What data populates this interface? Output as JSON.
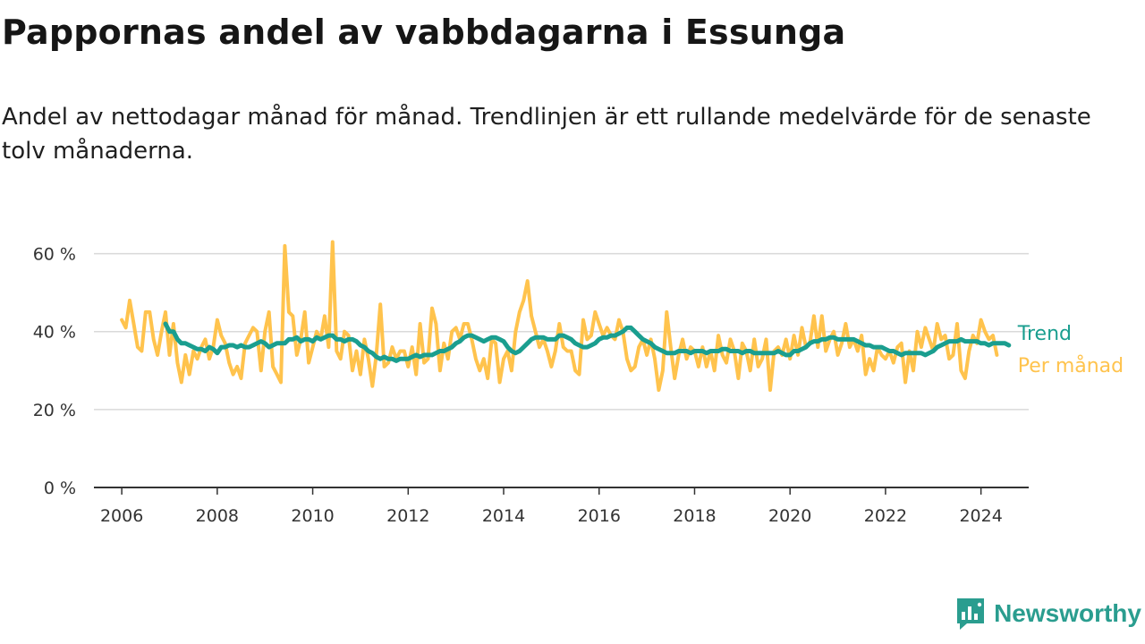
{
  "title": "Pappornas andel av vabbdagarna i Essunga",
  "subtitle": "Andel av nettodagar månad för månad. Trendlinjen är ett rullande medelvärde för de senaste tolv månaderna.",
  "brand": {
    "name": "Newsworthy",
    "icon": "newsworthy-logo-icon",
    "color": "#2a9d8f"
  },
  "colors": {
    "trend": "#1a9e8f",
    "monthly": "#ffc34d",
    "grid": "#d9d9d9",
    "axis": "#333333"
  },
  "chart_data": {
    "type": "line",
    "title": "Pappornas andel av vabbdagarna i Essunga",
    "ylabel": "",
    "xlabel": "",
    "ylim": [
      0,
      0.7
    ],
    "xlim": [
      "2005-06",
      "2025-01"
    ],
    "y_ticks": [
      {
        "value": 0,
        "label": "0 %"
      },
      {
        "value": 0.2,
        "label": "20 %"
      },
      {
        "value": 0.4,
        "label": "40 %"
      },
      {
        "value": 0.6,
        "label": "60 %"
      }
    ],
    "x_ticks": [
      {
        "value": "2006-01",
        "label": "2006"
      },
      {
        "value": "2008-01",
        "label": "2008"
      },
      {
        "value": "2010-01",
        "label": "2010"
      },
      {
        "value": "2012-01",
        "label": "2012"
      },
      {
        "value": "2014-01",
        "label": "2014"
      },
      {
        "value": "2016-01",
        "label": "2016"
      },
      {
        "value": "2018-01",
        "label": "2018"
      },
      {
        "value": "2020-01",
        "label": "2020"
      },
      {
        "value": "2022-01",
        "label": "2022"
      },
      {
        "value": "2024-01",
        "label": "2024"
      }
    ],
    "grid": true,
    "legend": "direct labels at right end of lines",
    "series": [
      {
        "name": "Per månad",
        "color": "#ffc34d",
        "start": "2006-01",
        "values": [
          0.43,
          0.41,
          0.48,
          0.42,
          0.36,
          0.35,
          0.45,
          0.45,
          0.38,
          0.34,
          0.4,
          0.45,
          0.34,
          0.42,
          0.32,
          0.27,
          0.34,
          0.29,
          0.35,
          0.33,
          0.36,
          0.38,
          0.33,
          0.36,
          0.43,
          0.39,
          0.37,
          0.32,
          0.29,
          0.31,
          0.28,
          0.37,
          0.39,
          0.41,
          0.4,
          0.3,
          0.4,
          0.45,
          0.31,
          0.29,
          0.27,
          0.62,
          0.45,
          0.44,
          0.34,
          0.38,
          0.45,
          0.32,
          0.36,
          0.4,
          0.38,
          0.44,
          0.36,
          0.63,
          0.35,
          0.33,
          0.4,
          0.39,
          0.3,
          0.35,
          0.29,
          0.38,
          0.33,
          0.26,
          0.34,
          0.47,
          0.31,
          0.32,
          0.36,
          0.33,
          0.35,
          0.35,
          0.31,
          0.36,
          0.29,
          0.42,
          0.32,
          0.33,
          0.46,
          0.42,
          0.3,
          0.37,
          0.33,
          0.4,
          0.41,
          0.38,
          0.42,
          0.42,
          0.38,
          0.33,
          0.3,
          0.33,
          0.28,
          0.38,
          0.37,
          0.27,
          0.33,
          0.35,
          0.3,
          0.4,
          0.45,
          0.48,
          0.53,
          0.44,
          0.4,
          0.36,
          0.38,
          0.35,
          0.31,
          0.35,
          0.42,
          0.36,
          0.35,
          0.35,
          0.3,
          0.29,
          0.43,
          0.38,
          0.39,
          0.45,
          0.42,
          0.39,
          0.41,
          0.39,
          0.38,
          0.43,
          0.4,
          0.33,
          0.3,
          0.31,
          0.36,
          0.38,
          0.34,
          0.38,
          0.33,
          0.25,
          0.3,
          0.45,
          0.36,
          0.28,
          0.34,
          0.38,
          0.33,
          0.36,
          0.35,
          0.31,
          0.36,
          0.31,
          0.35,
          0.3,
          0.39,
          0.34,
          0.32,
          0.38,
          0.35,
          0.28,
          0.37,
          0.35,
          0.3,
          0.38,
          0.31,
          0.33,
          0.38,
          0.25,
          0.35,
          0.36,
          0.34,
          0.38,
          0.33,
          0.39,
          0.34,
          0.41,
          0.36,
          0.37,
          0.44,
          0.36,
          0.44,
          0.35,
          0.38,
          0.4,
          0.34,
          0.37,
          0.42,
          0.36,
          0.38,
          0.35,
          0.39,
          0.29,
          0.33,
          0.3,
          0.36,
          0.34,
          0.33,
          0.35,
          0.32,
          0.36,
          0.37,
          0.27,
          0.35,
          0.3,
          0.4,
          0.36,
          0.41,
          0.38,
          0.35,
          0.42,
          0.38,
          0.39,
          0.33,
          0.34,
          0.42,
          0.3,
          0.28,
          0.35,
          0.39,
          0.37,
          0.43,
          0.4,
          0.38,
          0.39,
          0.34
        ]
      },
      {
        "name": "Trend",
        "color": "#1a9e8f",
        "start": "2006-12",
        "values": [
          0.42,
          0.4,
          0.4,
          0.38,
          0.37,
          0.37,
          0.365,
          0.36,
          0.355,
          0.355,
          0.35,
          0.36,
          0.355,
          0.345,
          0.36,
          0.36,
          0.365,
          0.365,
          0.36,
          0.365,
          0.36,
          0.36,
          0.365,
          0.37,
          0.375,
          0.37,
          0.36,
          0.365,
          0.37,
          0.37,
          0.37,
          0.38,
          0.38,
          0.385,
          0.375,
          0.38,
          0.38,
          0.375,
          0.385,
          0.38,
          0.385,
          0.39,
          0.39,
          0.38,
          0.38,
          0.375,
          0.38,
          0.38,
          0.375,
          0.365,
          0.36,
          0.35,
          0.345,
          0.335,
          0.33,
          0.335,
          0.33,
          0.33,
          0.325,
          0.33,
          0.33,
          0.33,
          0.335,
          0.34,
          0.335,
          0.34,
          0.34,
          0.34,
          0.345,
          0.35,
          0.35,
          0.355,
          0.36,
          0.37,
          0.375,
          0.385,
          0.39,
          0.39,
          0.385,
          0.38,
          0.375,
          0.38,
          0.385,
          0.385,
          0.38,
          0.375,
          0.36,
          0.35,
          0.345,
          0.35,
          0.36,
          0.37,
          0.38,
          0.385,
          0.385,
          0.385,
          0.38,
          0.38,
          0.38,
          0.39,
          0.39,
          0.385,
          0.38,
          0.37,
          0.365,
          0.36,
          0.36,
          0.365,
          0.37,
          0.38,
          0.385,
          0.385,
          0.39,
          0.39,
          0.395,
          0.4,
          0.41,
          0.41,
          0.4,
          0.39,
          0.38,
          0.375,
          0.37,
          0.36,
          0.355,
          0.35,
          0.345,
          0.345,
          0.345,
          0.35,
          0.35,
          0.35,
          0.345,
          0.35,
          0.35,
          0.35,
          0.345,
          0.35,
          0.35,
          0.35,
          0.355,
          0.355,
          0.35,
          0.35,
          0.35,
          0.345,
          0.35,
          0.35,
          0.345,
          0.345,
          0.345,
          0.345,
          0.345,
          0.345,
          0.35,
          0.345,
          0.34,
          0.34,
          0.35,
          0.35,
          0.355,
          0.36,
          0.37,
          0.375,
          0.375,
          0.38,
          0.38,
          0.385,
          0.385,
          0.38,
          0.38,
          0.38,
          0.38,
          0.38,
          0.375,
          0.37,
          0.365,
          0.365,
          0.36,
          0.36,
          0.36,
          0.355,
          0.35,
          0.35,
          0.345,
          0.34,
          0.345,
          0.345,
          0.345,
          0.345,
          0.345,
          0.34,
          0.345,
          0.35,
          0.36,
          0.365,
          0.37,
          0.375,
          0.375,
          0.375,
          0.38,
          0.375,
          0.375,
          0.375,
          0.375,
          0.37,
          0.37,
          0.365,
          0.37,
          0.37,
          0.37,
          0.37,
          0.365
        ]
      }
    ]
  }
}
